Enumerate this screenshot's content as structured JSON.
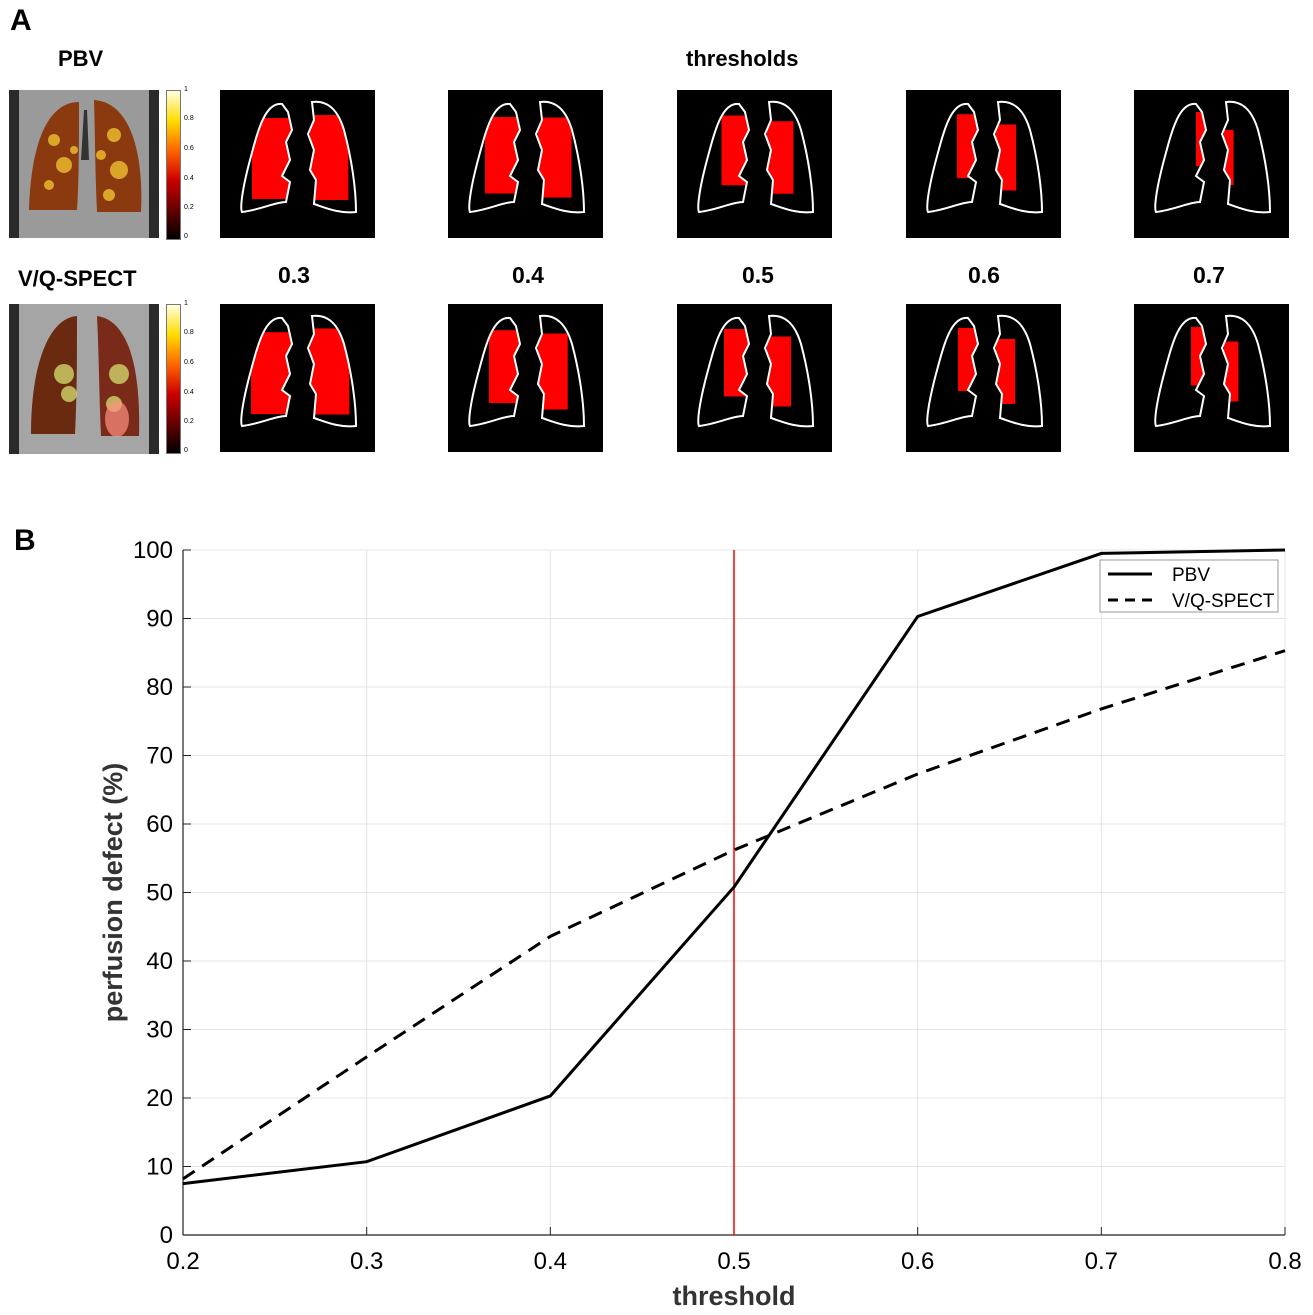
{
  "panel_a": {
    "label": "A",
    "title": "thresholds",
    "row_labels": [
      "PBV",
      "V/Q-SPECT"
    ],
    "threshold_labels": [
      "0.3",
      "0.4",
      "0.5",
      "0.6",
      "0.7"
    ],
    "colorbar_ticks": [
      "1",
      "0.8",
      "0.6",
      "0.4",
      "0.2",
      "0"
    ],
    "colors": {
      "defect": "#ff0000",
      "outline": "#ffffff",
      "background": "#000000"
    }
  },
  "panel_b": {
    "label": "B"
  },
  "chart_data": {
    "type": "line",
    "xlabel": "threshold",
    "ylabel": "perfusion defect (%)",
    "xlim": [
      0.2,
      0.8
    ],
    "ylim": [
      0,
      100
    ],
    "xticks": [
      0.2,
      0.3,
      0.4,
      0.5,
      0.6,
      0.7,
      0.8
    ],
    "yticks": [
      0,
      10,
      20,
      30,
      40,
      50,
      60,
      70,
      80,
      90,
      100
    ],
    "grid": true,
    "legend_position": "top-right",
    "x": [
      0.2,
      0.3,
      0.4,
      0.5,
      0.6,
      0.7,
      0.8
    ],
    "series": [
      {
        "name": "PBV",
        "style": "solid",
        "color": "#000000",
        "values": [
          7.5,
          10.7,
          20.3,
          50.8,
          90.3,
          99.5,
          100
        ]
      },
      {
        "name": "V/Q-SPECT",
        "style": "dashed",
        "color": "#000000",
        "values": [
          8.2,
          26.0,
          43.6,
          56.2,
          67.3,
          76.8,
          85.3
        ]
      }
    ],
    "reference_line": {
      "x": 0.5,
      "color": "#ff0000"
    }
  }
}
